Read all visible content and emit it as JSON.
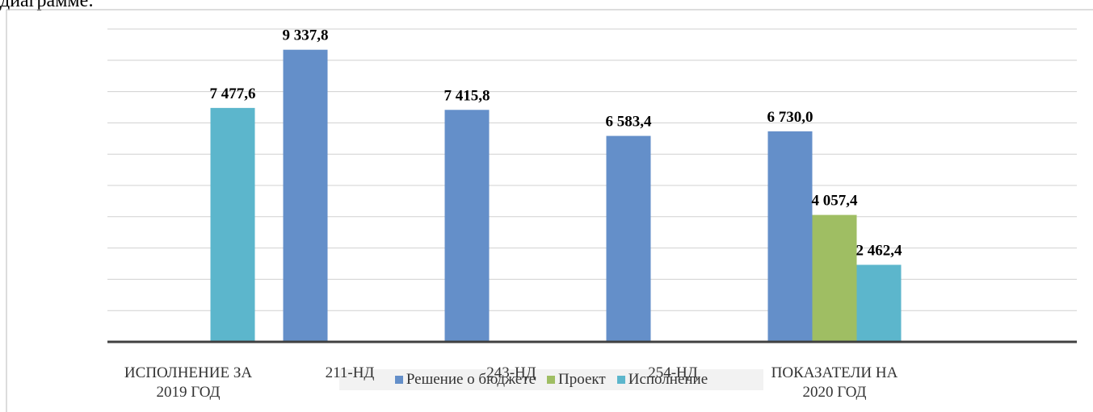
{
  "intro_text": "диаграмме:",
  "chart_data": {
    "type": "bar",
    "categories": [
      "ИСПОЛНЕНИЕ ЗА 2019 ГОД",
      "211-НД",
      "243-НД",
      "254-НД",
      "ПОКАЗАТЕЛИ НА 2020 ГОД"
    ],
    "series": [
      {
        "name": "Решение о бюджете",
        "color": "#648fc9",
        "values": [
          null,
          9337.8,
          7415.8,
          6583.4,
          6730.0
        ],
        "value_labels": [
          null,
          "9 337,8",
          "7 415,8",
          "6 583,4",
          "6 730,0"
        ]
      },
      {
        "name": "Проект",
        "color": "#9fbe63",
        "values": [
          null,
          null,
          null,
          null,
          4057.4
        ],
        "value_labels": [
          null,
          null,
          null,
          null,
          "4 057,4"
        ]
      },
      {
        "name": "Исполнение",
        "color": "#5cb6cc",
        "values": [
          7477.6,
          null,
          null,
          null,
          2462.4
        ],
        "value_labels": [
          "7 477,6",
          null,
          null,
          null,
          "2 462,4"
        ]
      }
    ],
    "ylim": [
      0,
      10000
    ],
    "yticks": [
      0,
      1000,
      2000,
      3000,
      4000,
      5000,
      6000,
      7000,
      8000,
      9000,
      10000
    ],
    "grid": true,
    "legend": "bottom"
  }
}
